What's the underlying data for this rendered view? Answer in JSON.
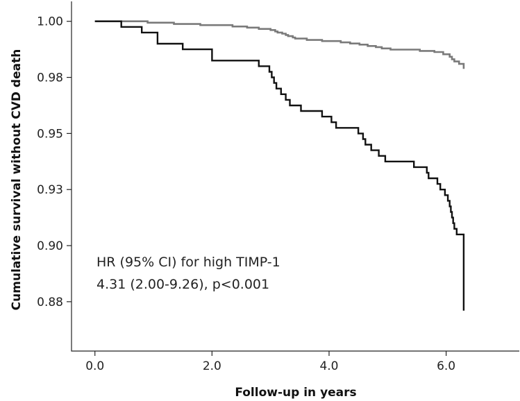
{
  "chart_data": {
    "type": "line",
    "title": "",
    "xlabel": "Follow-up in years",
    "ylabel": "Cumulative survival without CVD death",
    "xlim": [
      -0.4,
      7.25
    ],
    "ylim": [
      0.8555,
      1.012
    ],
    "x_ticks": [
      0.0,
      2.0,
      4.0,
      6.0
    ],
    "x_tick_labels": [
      "0.0",
      "2.0",
      "4.0",
      "6.0"
    ],
    "y_ticks": [
      0.8775,
      0.9025,
      0.9275,
      0.9525,
      0.9775,
      1.0025
    ],
    "y_tick_labels": [
      "0.88",
      "0.90",
      "0.93",
      "0.95",
      "0.98",
      "1.00"
    ],
    "grid": false,
    "legend": "none",
    "annotation": [
      "HR (95% CI) for high TIMP-1",
      "4.31 (2.00-9.26), p<0.001"
    ],
    "series": [
      {
        "color": "#7a7a7a",
        "step": true,
        "points": [
          [
            0.0,
            1.0025
          ],
          [
            0.9,
            1.0019
          ],
          [
            1.35,
            1.0013
          ],
          [
            1.8,
            1.0008
          ],
          [
            2.35,
            1.0002
          ],
          [
            2.6,
            0.9997
          ],
          [
            2.8,
            0.9991
          ],
          [
            3.0,
            0.9986
          ],
          [
            3.08,
            0.998
          ],
          [
            3.12,
            0.9975
          ],
          [
            3.2,
            0.997
          ],
          [
            3.26,
            0.9964
          ],
          [
            3.3,
            0.9959
          ],
          [
            3.38,
            0.9953
          ],
          [
            3.42,
            0.9948
          ],
          [
            3.62,
            0.9942
          ],
          [
            3.88,
            0.9937
          ],
          [
            4.2,
            0.9931
          ],
          [
            4.36,
            0.9926
          ],
          [
            4.52,
            0.9921
          ],
          [
            4.66,
            0.9915
          ],
          [
            4.8,
            0.991
          ],
          [
            4.9,
            0.9904
          ],
          [
            5.05,
            0.9899
          ],
          [
            5.55,
            0.9893
          ],
          [
            5.8,
            0.9888
          ],
          [
            5.95,
            0.9878
          ],
          [
            6.06,
            0.9867
          ],
          [
            6.1,
            0.9856
          ],
          [
            6.14,
            0.9846
          ],
          [
            6.22,
            0.9835
          ],
          [
            6.3,
            0.9813
          ]
        ]
      },
      {
        "color": "#111111",
        "step": true,
        "points": [
          [
            0.0,
            1.0025
          ],
          [
            0.45,
            1.0
          ],
          [
            0.8,
            0.9975
          ],
          [
            1.07,
            0.995
          ],
          [
            1.07,
            0.9925
          ],
          [
            1.5,
            0.99
          ],
          [
            2.0,
            0.9875
          ],
          [
            2.0,
            0.985
          ],
          [
            2.8,
            0.9825
          ],
          [
            2.98,
            0.98
          ],
          [
            3.02,
            0.9775
          ],
          [
            3.06,
            0.975
          ],
          [
            3.1,
            0.9725
          ],
          [
            3.18,
            0.97
          ],
          [
            3.26,
            0.9675
          ],
          [
            3.33,
            0.965
          ],
          [
            3.52,
            0.9625
          ],
          [
            3.88,
            0.96
          ],
          [
            4.04,
            0.9575
          ],
          [
            4.12,
            0.955
          ],
          [
            4.5,
            0.9525
          ],
          [
            4.58,
            0.95
          ],
          [
            4.62,
            0.9475
          ],
          [
            4.72,
            0.945
          ],
          [
            4.85,
            0.9425
          ],
          [
            4.96,
            0.94
          ],
          [
            5.45,
            0.9375
          ],
          [
            5.67,
            0.935
          ],
          [
            5.7,
            0.9325
          ],
          [
            5.85,
            0.93
          ],
          [
            5.9,
            0.9275
          ],
          [
            5.98,
            0.925
          ],
          [
            6.03,
            0.9225
          ],
          [
            6.06,
            0.92
          ],
          [
            6.08,
            0.9175
          ],
          [
            6.1,
            0.915
          ],
          [
            6.12,
            0.9125
          ],
          [
            6.14,
            0.91
          ],
          [
            6.18,
            0.9075
          ],
          [
            6.3,
            0.9025
          ],
          [
            6.3,
            0.8735
          ]
        ]
      }
    ]
  }
}
